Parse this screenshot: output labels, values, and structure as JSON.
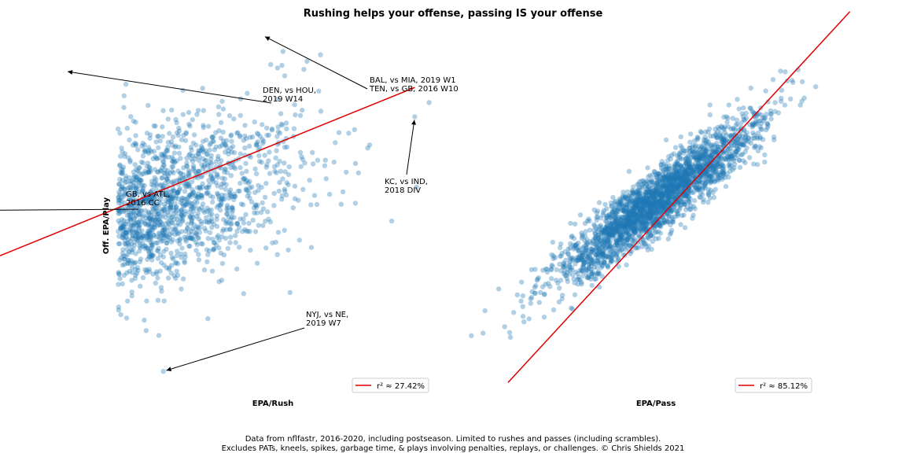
{
  "title": "Rushing helps your offense, passing IS your offense",
  "caption_line1": "Data from nflfastr, 2016-2020, including postseason. Limited to rushes and passes (including scrambles).",
  "caption_line2": "Excludes PATs, kneels, spikes, garbage time, & plays involving penalties, replays, or challenges. © Chris Shields 2021",
  "colors": {
    "points": "#1f77b4",
    "fit_line": "#e00000"
  },
  "chart_data": [
    {
      "type": "scatter",
      "xlabel": "EPA/Rush",
      "ylabel": "Off. EPA/Play",
      "ticks_visible": false,
      "n_points_approx": 2600,
      "cloud": {
        "center": [
          0.0,
          0.0
        ],
        "x_sd": 0.17,
        "y_sd": 0.14,
        "correlation": 0.52
      },
      "outliers": [
        [
          -0.65,
          0.01
        ],
        [
          -0.48,
          -0.26
        ],
        [
          -0.56,
          -0.44
        ],
        [
          -0.45,
          -0.31
        ],
        [
          -0.36,
          -0.32
        ],
        [
          -0.41,
          -0.19
        ],
        [
          -0.5,
          -0.14
        ],
        [
          -0.49,
          -0.08
        ],
        [
          -0.35,
          -0.21
        ],
        [
          -0.45,
          0.0
        ],
        [
          -0.31,
          -0.32
        ],
        [
          -0.19,
          -0.27
        ],
        [
          -0.04,
          -0.35
        ],
        [
          0.07,
          -0.37
        ],
        [
          0.48,
          0.07
        ],
        [
          0.37,
          0.24
        ],
        [
          0.43,
          0.49
        ],
        [
          0.4,
          0.47
        ],
        [
          0.34,
          0.25
        ]
      ],
      "annotations": [
        {
          "text": "DEN, vs HOU,\n2019 W14",
          "point": [
            -0.14,
            0.44
          ]
        },
        {
          "text": "BAL, vs MIA, 2019 W1\nTEN, vs GB, 2016 W10",
          "point": [
            0.3,
            0.55
          ]
        },
        {
          "text": "KC, vs IND,\n2018 DIV",
          "point": [
            0.64,
            0.3
          ]
        },
        {
          "text": "GB, vs ATL,\n2016 CC",
          "point": [
            -0.65,
            0.01
          ]
        },
        {
          "text": "NYJ, vs NE,\n2019 W7",
          "point": [
            0.08,
            -0.48
          ]
        }
      ],
      "fit_line": {
        "x": [
          -0.65,
          0.64
        ],
        "y": [
          -0.33,
          0.39
        ]
      },
      "legend": {
        "label": "r² ≈ 27.42%",
        "position": "lower right"
      }
    },
    {
      "type": "scatter",
      "xlabel": "EPA/Pass",
      "ylabel": "",
      "ticks_visible": false,
      "n_points_approx": 2600,
      "cloud": {
        "center": [
          0.0,
          0.0
        ],
        "x_sd": 0.2,
        "y_sd": 0.14,
        "correlation": 0.92
      },
      "outliers": [
        [
          -0.59,
          -0.48
        ],
        [
          -0.34,
          -0.38
        ],
        [
          -0.33,
          -0.33
        ],
        [
          -0.28,
          -0.27
        ],
        [
          -0.3,
          -0.18
        ],
        [
          0.35,
          0.33
        ],
        [
          0.38,
          0.4
        ],
        [
          0.42,
          0.33
        ],
        [
          0.5,
          0.46
        ],
        [
          0.62,
          0.55
        ],
        [
          0.78,
          0.55
        ],
        [
          0.47,
          0.43
        ],
        [
          0.44,
          0.39
        ],
        [
          0.55,
          0.42
        ],
        [
          0.58,
          0.34
        ]
      ],
      "fit_line": {
        "x": [
          -0.6,
          0.78
        ],
        "y": [
          -0.64,
          0.67
        ]
      },
      "legend": {
        "label": "r² ≈ 85.12%",
        "position": "lower right"
      }
    }
  ]
}
